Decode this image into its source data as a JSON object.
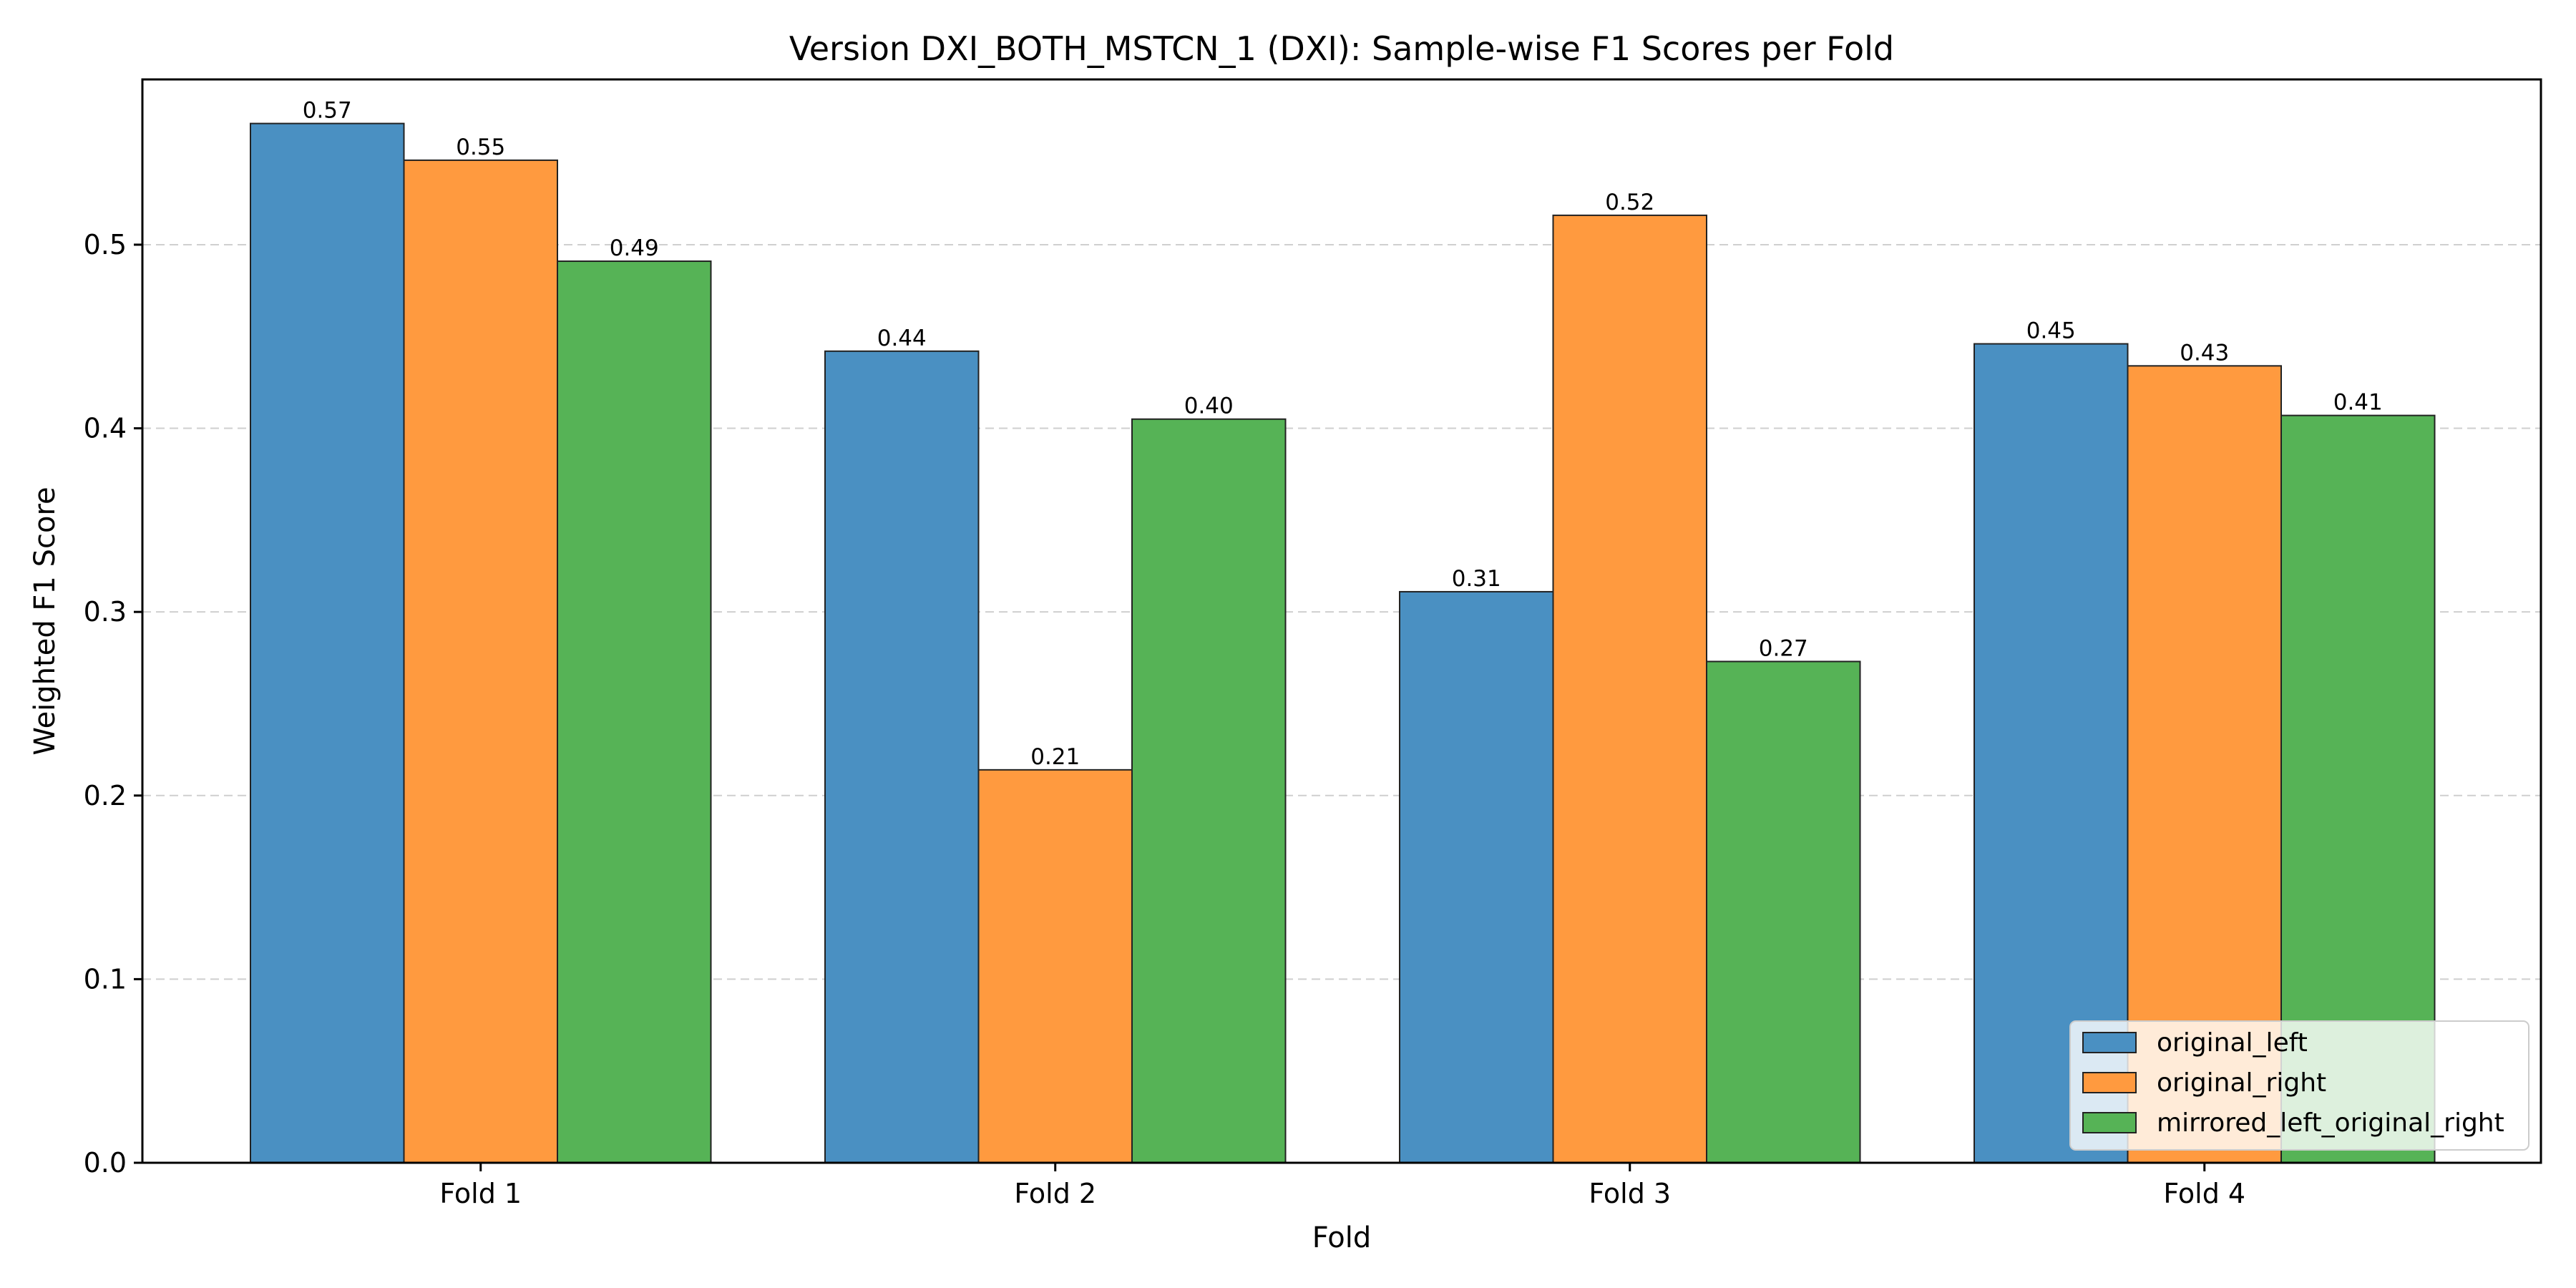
{
  "chart_data": {
    "type": "bar",
    "title": "Version DXI_BOTH_MSTCN_1 (DXI): Sample-wise F1 Scores per Fold",
    "xlabel": "Fold",
    "ylabel": "Weighted F1 Score",
    "categories": [
      "Fold 1",
      "Fold 2",
      "Fold 3",
      "Fold 4"
    ],
    "ylim": [
      0,
      0.59
    ],
    "yticks": [
      0.0,
      0.1,
      0.2,
      0.3,
      0.4,
      0.5
    ],
    "ytick_labels": [
      "0.0",
      "0.1",
      "0.2",
      "0.3",
      "0.4",
      "0.5"
    ],
    "grid": "y-dashed",
    "legend_position": "lower-right",
    "series": [
      {
        "name": "original_left",
        "color": "#4a90c2",
        "values": [
          0.566,
          0.442,
          0.311,
          0.446
        ],
        "labels": [
          "0.57",
          "0.44",
          "0.31",
          "0.45"
        ]
      },
      {
        "name": "original_right",
        "color": "#ff9a3f",
        "values": [
          0.546,
          0.214,
          0.516,
          0.434
        ],
        "labels": [
          "0.55",
          "0.21",
          "0.52",
          "0.43"
        ]
      },
      {
        "name": "mirrored_left_original_right",
        "color": "#56b356",
        "values": [
          0.491,
          0.405,
          0.273,
          0.407
        ],
        "labels": [
          "0.49",
          "0.40",
          "0.27",
          "0.41"
        ]
      }
    ]
  }
}
